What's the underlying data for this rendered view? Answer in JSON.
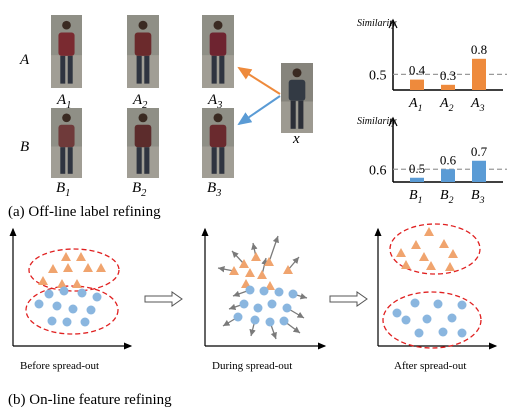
{
  "figure": {
    "section_a_caption": "(a) Off-line label refining",
    "section_b_caption": "(b) On-line feature refining",
    "row_a_label": "A",
    "row_b_label": "B",
    "query_label": "x",
    "images_a": [
      {
        "main": "A",
        "sub": "1"
      },
      {
        "main": "A",
        "sub": "2"
      },
      {
        "main": "A",
        "sub": "3"
      }
    ],
    "images_b": [
      {
        "main": "B",
        "sub": "1"
      },
      {
        "main": "B",
        "sub": "2"
      },
      {
        "main": "B",
        "sub": "3"
      }
    ],
    "panel_captions": [
      "Before spread-out",
      "During spread-out",
      "After spread-out"
    ]
  },
  "colors": {
    "orange": "#ee8a3c",
    "blue": "#5a9bd5",
    "triangle": "#f0a46e",
    "dot": "#8ab6df",
    "ellipse": "#e02020",
    "threshold": "#9a9a9a"
  },
  "chart_data": [
    {
      "type": "bar",
      "ylabel": "Similarity",
      "categories": [
        "A1",
        "A2",
        "A3"
      ],
      "values": [
        0.4,
        0.3,
        0.8
      ],
      "value_labels": [
        "0.4",
        "0.3",
        "0.8"
      ],
      "threshold": 0.5,
      "threshold_label": "0.5",
      "color": "#ee8a3c"
    },
    {
      "type": "bar",
      "ylabel": "Similarity",
      "categories": [
        "B1",
        "B2",
        "B3"
      ],
      "values": [
        0.5,
        0.6,
        0.7
      ],
      "value_labels": [
        "0.5",
        "0.6",
        "0.7"
      ],
      "threshold": 0.6,
      "threshold_label": "0.6",
      "color": "#5a9bd5"
    }
  ]
}
